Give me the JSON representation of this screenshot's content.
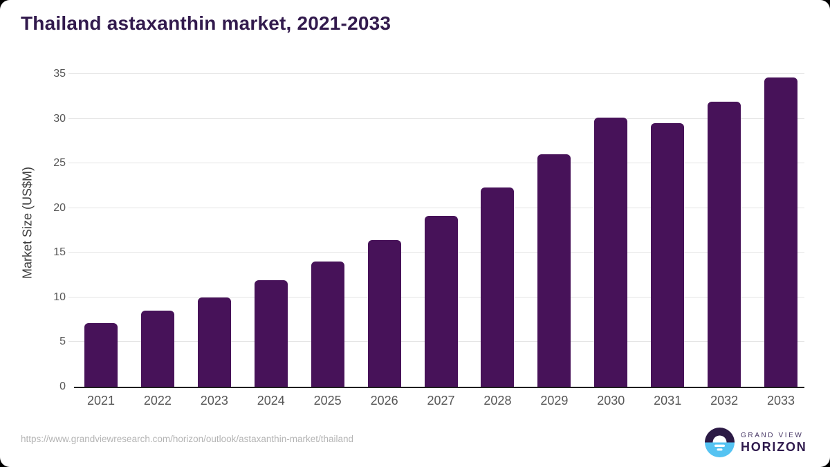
{
  "chart_data": {
    "type": "bar",
    "title": "Thailand astaxanthin market, 2021-2033",
    "categories": [
      "2021",
      "2022",
      "2023",
      "2024",
      "2025",
      "2026",
      "2027",
      "2028",
      "2029",
      "2030",
      "2031",
      "2032",
      "2033"
    ],
    "values": [
      7.1,
      8.5,
      10.0,
      11.9,
      14.0,
      16.4,
      19.1,
      22.3,
      26.0,
      30.1,
      29.5,
      31.9,
      34.6
    ],
    "xlabel": "",
    "ylabel": "Market Size (US$M)",
    "ylim": [
      0,
      35
    ],
    "yticks": [
      0,
      5,
      10,
      15,
      20,
      25,
      30,
      35
    ],
    "grid": true,
    "legend_position": "none",
    "bar_color": "#471259",
    "gridline_color": "#e4e4e4",
    "axis_line_color": "#1f1f1f",
    "tick_label_color": "#575757",
    "axis_title_color": "#3d3d3d",
    "title_color": "#321a4d"
  },
  "footer": {
    "source_url": "https://www.grandviewresearch.com/horizon/outlook/astaxanthin-market/thailand",
    "logo": {
      "brand_top": "GRAND VIEW",
      "brand_bottom": "HORIZON",
      "circle_top_color": "#2c1a45",
      "circle_bottom_color": "#55c3f2",
      "sun_color": "#ffffff"
    }
  }
}
